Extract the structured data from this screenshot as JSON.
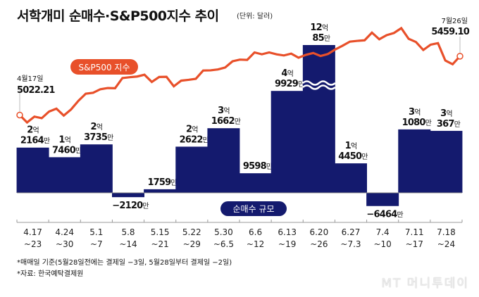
{
  "chart_data": {
    "type": "bar+line",
    "title": "서학개미 순매수·S&P500지수 추이",
    "unit_note": "(단위: 달러)",
    "categories": [
      {
        "top": "4.17",
        "bottom": "~23"
      },
      {
        "top": "4.24",
        "bottom": "~30"
      },
      {
        "top": "5.1",
        "bottom": "~7"
      },
      {
        "top": "5.8",
        "bottom": "~14"
      },
      {
        "top": "5.15",
        "bottom": "~21"
      },
      {
        "top": "5.22",
        "bottom": "~29"
      },
      {
        "top": "5.30",
        "bottom": "~6.5"
      },
      {
        "top": "6.6",
        "bottom": "~12"
      },
      {
        "top": "6.13",
        "bottom": "~19"
      },
      {
        "top": "6.20",
        "bottom": "~26"
      },
      {
        "top": "6.27",
        "bottom": "~7.3"
      },
      {
        "top": "7.4",
        "bottom": "~10"
      },
      {
        "top": "7.11",
        "bottom": "~17"
      },
      {
        "top": "7.18",
        "bottom": "~24"
      }
    ],
    "bar_series": {
      "name": "순매수 규모",
      "color": "#141a6e",
      "values_usd": [
        221640000,
        174600000,
        237350000,
        -21200000,
        17590000,
        226220000,
        316620000,
        95980000,
        499290000,
        1200850000,
        144500000,
        -64640000,
        310800000,
        303670000
      ],
      "labels": [
        {
          "eok": "2",
          "man": "2164"
        },
        {
          "eok": "1",
          "man": "7460"
        },
        {
          "eok": "2",
          "man": "3735"
        },
        {
          "eok": "",
          "man": "−2120"
        },
        {
          "eok": "",
          "man": "1759"
        },
        {
          "eok": "2",
          "man": "2622"
        },
        {
          "eok": "3",
          "man": "1662"
        },
        {
          "eok": "",
          "man": "9598"
        },
        {
          "eok": "4",
          "man": "9929"
        },
        {
          "eok": "12",
          "man": "85"
        },
        {
          "eok": "1",
          "man": "4450"
        },
        {
          "eok": "",
          "man": "−6464"
        },
        {
          "eok": "3",
          "man": "1080"
        },
        {
          "eok": "3",
          "man": "367"
        }
      ],
      "eok_suffix": "억",
      "man_suffix": "만",
      "broken_bar_index": 9
    },
    "line_series": {
      "name": "S&P500 지수",
      "color": "#e8502a",
      "start": {
        "date": "4월17일",
        "value": 5022.21
      },
      "end": {
        "date": "7월26일",
        "value": 5459.1
      },
      "values": [
        5022.21,
        4967.23,
        5010.6,
        4999,
        5048.42,
        5070,
        5018.39,
        5064.2,
        5127.79,
        5180.74,
        5187.7,
        5214.08,
        5222.68,
        5221.42,
        5297.1,
        5303.27,
        5308.13,
        5321.41,
        5267.84,
        5304.72,
        5306.04,
        5235.48,
        5277.51,
        5283.4,
        5291.34,
        5352.96,
        5354.03,
        5360.79,
        5375.32,
        5421.03,
        5433.74,
        5431.6,
        5487.03,
        5473.23,
        5487.03,
        5473.17,
        5464.62,
        5477.9,
        5447.87,
        5469.3,
        5482.87,
        5460.48,
        5475.09,
        5509.01,
        5537.02,
        5567.19,
        5572.85,
        5576.98,
        5633.91,
        5584.54,
        5615.35,
        5631.22,
        5667.2,
        5588.27,
        5564.41,
        5505,
        5544.59,
        5555.74,
        5427.13,
        5399.22,
        5459.1
      ]
    },
    "legend": {
      "line": "S&P500 지수",
      "bar": "순매수 규모"
    }
  },
  "notes": [
    "*매매일 기준(5월28일전에는 결제일 −3일, 5월28일부터 결제일 −2일)",
    "*자료: 한국예탁결제원"
  ],
  "watermark": "MT 머니투데이"
}
